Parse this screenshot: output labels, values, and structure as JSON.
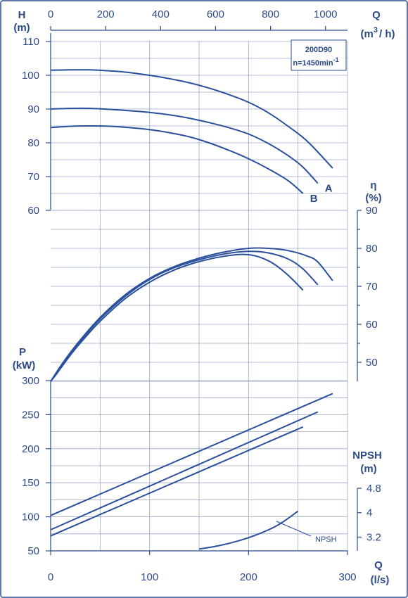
{
  "chart_data": {
    "type": "line",
    "title": "200D90",
    "subtitle": "n=1450min",
    "subtitle_sup": "-1",
    "flow_top_axis": {
      "label": "Q",
      "unit_base": "(m",
      "unit_exp": "3",
      "unit_tail": "/ h)",
      "range": [
        0,
        1080
      ],
      "ticks": [
        "0",
        "200",
        "400",
        "600",
        "800",
        "1000"
      ]
    },
    "flow_bottom_axis": {
      "label": "Q",
      "unit": "(l/s)",
      "range": [
        0,
        300
      ],
      "ticks": [
        "0",
        "100",
        "200",
        "300"
      ]
    },
    "head_axis": {
      "label": "H",
      "unit": "(m)",
      "range": [
        60,
        110
      ],
      "ticks": [
        "60",
        "70",
        "80",
        "90",
        "100",
        "110"
      ]
    },
    "efficiency_axis": {
      "label": "η",
      "unit": "(%)",
      "range": [
        45,
        90
      ],
      "ticks": [
        "50",
        "60",
        "70",
        "80",
        "90"
      ]
    },
    "power_axis": {
      "label": "P",
      "unit": "(kW)",
      "range": [
        50,
        300
      ],
      "ticks": [
        "50",
        "100",
        "150",
        "200",
        "250",
        "300"
      ]
    },
    "npsh_axis": {
      "label": "NPSH",
      "unit": "(m)",
      "range": [
        2.75,
        4.8
      ],
      "ticks": [
        "3.2",
        "4",
        "4.8"
      ]
    },
    "grid": true,
    "series": [
      {
        "group": "head",
        "name": "",
        "x": [
          0,
          20,
          40,
          60,
          80,
          100,
          120,
          140,
          160,
          180,
          200,
          220,
          240,
          260,
          285
        ],
        "y": [
          101.5,
          101.6,
          101.6,
          101.3,
          100.8,
          100.0,
          99.0,
          97.8,
          96.2,
          94.3,
          92.0,
          88.9,
          84.9,
          80.3,
          72.5
        ]
      },
      {
        "group": "head",
        "name": "A",
        "x": [
          0,
          20,
          40,
          60,
          80,
          100,
          120,
          140,
          160,
          180,
          200,
          220,
          240,
          255,
          270
        ],
        "y": [
          90.0,
          90.2,
          90.2,
          89.9,
          89.5,
          89.0,
          88.3,
          87.3,
          86.0,
          84.5,
          82.6,
          79.8,
          76.2,
          72.8,
          68.0
        ]
      },
      {
        "group": "head",
        "name": "B",
        "x": [
          0,
          20,
          40,
          60,
          80,
          100,
          120,
          140,
          160,
          180,
          200,
          220,
          240,
          255
        ],
        "y": [
          84.5,
          84.9,
          85.0,
          84.9,
          84.5,
          83.9,
          83.0,
          81.8,
          80.0,
          77.8,
          75.3,
          72.3,
          68.8,
          65.0
        ]
      },
      {
        "group": "efficiency",
        "name": "",
        "x": [
          0,
          5,
          10,
          20,
          30,
          50,
          75,
          100,
          125,
          150,
          175,
          200,
          220,
          240,
          260,
          270,
          285
        ],
        "y": [
          45,
          47,
          49,
          52.6,
          55.9,
          61.8,
          67.7,
          72.1,
          75.2,
          77.4,
          79.0,
          80.0,
          80.0,
          79.4,
          77.9,
          76.4,
          71.5
        ]
      },
      {
        "group": "efficiency",
        "name": "",
        "x": [
          0,
          5,
          10,
          20,
          30,
          50,
          75,
          100,
          125,
          150,
          175,
          200,
          220,
          240,
          255,
          270
        ],
        "y": [
          45,
          46.8,
          48.7,
          52.4,
          55.6,
          61.4,
          67.3,
          71.8,
          74.9,
          77.0,
          78.5,
          79.2,
          78.8,
          77.2,
          74.6,
          70.4
        ]
      },
      {
        "group": "efficiency",
        "name": "",
        "x": [
          0,
          5,
          10,
          20,
          30,
          50,
          75,
          100,
          125,
          150,
          175,
          195,
          210,
          225,
          240,
          255
        ],
        "y": [
          45,
          46.6,
          48.4,
          51.9,
          55.1,
          60.8,
          66.7,
          71.1,
          74.3,
          76.5,
          77.9,
          78.4,
          77.8,
          76.0,
          72.9,
          69.0
        ]
      },
      {
        "group": "power",
        "name": "",
        "x": [
          0,
          285
        ],
        "y": [
          102,
          281
        ]
      },
      {
        "group": "power",
        "name": "",
        "x": [
          0,
          270
        ],
        "y": [
          81,
          254
        ]
      },
      {
        "group": "power",
        "name": "",
        "x": [
          0,
          255
        ],
        "y": [
          72,
          232
        ]
      },
      {
        "group": "npsh",
        "name": "NPSH",
        "x": [
          150,
          170,
          190,
          210,
          230,
          250
        ],
        "y": [
          2.81,
          2.92,
          3.08,
          3.3,
          3.6,
          4.05
        ]
      }
    ]
  }
}
